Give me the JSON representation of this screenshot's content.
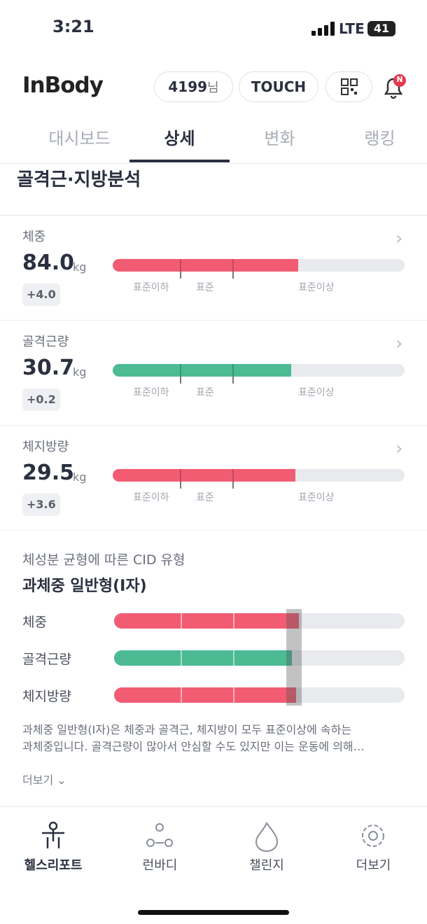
{
  "status": {
    "time": "3:21",
    "network": "LTE",
    "battery": "41"
  },
  "header": {
    "logo": "InBody",
    "user_id": "4199",
    "user_suffix": "님",
    "touch": "TOUCH",
    "badge": "N"
  },
  "tabs": [
    "대시보드",
    "상세",
    "변화",
    "랭킹"
  ],
  "section": {
    "title": "골격근·지방분석",
    "items": [
      {
        "name": "체중",
        "value": "84.0",
        "unit": "kg",
        "change": "+4.0",
        "scale": [
          "표준이하",
          "표준",
          "표준이상"
        ]
      },
      {
        "name": "골격근량",
        "value": "30.7",
        "unit": "kg",
        "change": "+0.2",
        "scale": [
          "표준이하",
          "표준",
          "표준이상"
        ]
      },
      {
        "name": "체지방량",
        "value": "29.5",
        "unit": "kg",
        "change": "+3.6",
        "scale": [
          "표준이하",
          "표준",
          "표준이상"
        ]
      }
    ]
  },
  "cid": {
    "subtitle": "체성분 균형에 따른 CID 유형",
    "type": "과체중 일반형(I자)",
    "rows": [
      "체중",
      "골격근량",
      "체지방량"
    ],
    "description": [
      "과체중 일반형(I자)은 체중과 골격근, 체지방이 모두 표준이상에 속하는",
      "과체중입니다. 골격근량이 많아서 안심할 수도 있지만 이는 운동에 의해…"
    ],
    "more": "더보기"
  },
  "nav": [
    "헬스리포트",
    "런바디",
    "챌린지",
    "더보기"
  ]
}
